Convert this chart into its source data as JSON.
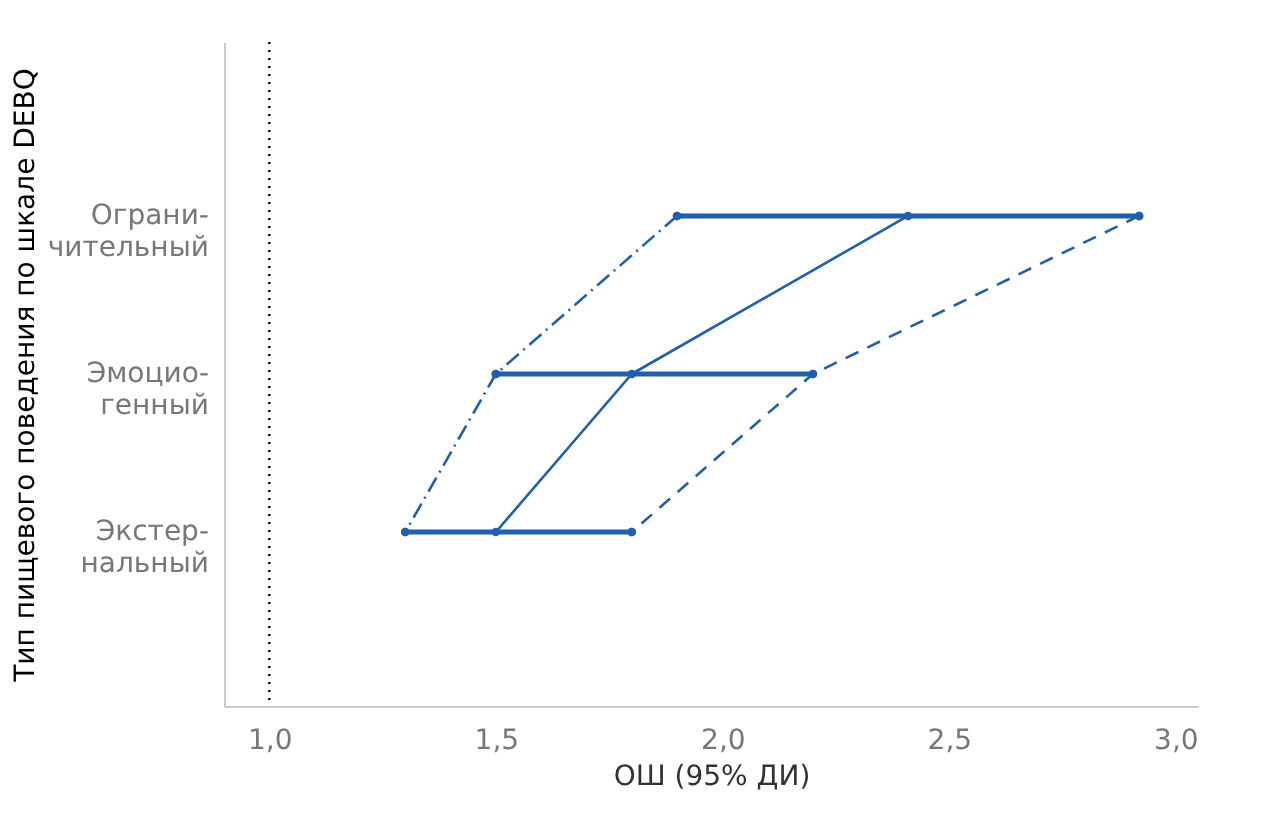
{
  "chart_data": {
    "type": "line",
    "orientation": "horizontal",
    "xlabel": "ОШ (95% ДИ)",
    "ylabel": "Тип пищевого поведения по шкале DEBQ",
    "categories": [
      "Ограни-\nчительный",
      "Эмоцио-\nгенный",
      "Экстер-\nнальный"
    ],
    "series": [
      {
        "color": "#1f5fad",
        "values": [
          2.41,
          1.8,
          1.5
        ],
        "errors": [
          [
            1.9,
            2.92
          ],
          [
            1.5,
            2.2
          ],
          [
            1.3,
            1.8
          ]
        ],
        "line_style": "solid",
        "marker": "circle"
      },
      {
        "color": "#1f5fad",
        "values": [
          1.9,
          1.5,
          1.3
        ],
        "line_style": "dashdot",
        "marker": "circle"
      },
      {
        "color": "#1f5fad",
        "values": [
          2.92,
          2.2,
          1.8
        ],
        "line_style": "dashed",
        "marker": "circle"
      }
    ],
    "xlim": [
      0.9,
      3.05
    ],
    "xticks": [
      {
        "value": 1.0,
        "label": "1,0"
      },
      {
        "value": 1.5,
        "label": "1,5"
      },
      {
        "value": 2.0,
        "label": "2,0"
      },
      {
        "value": 2.5,
        "label": "2,5"
      },
      {
        "value": 3.0,
        "label": "3,0"
      }
    ],
    "ref_lines": [
      {
        "axis": "x",
        "value": 1.0,
        "label": null,
        "color": "#000000",
        "line_style": "dotted"
      }
    ],
    "grid": false
  }
}
